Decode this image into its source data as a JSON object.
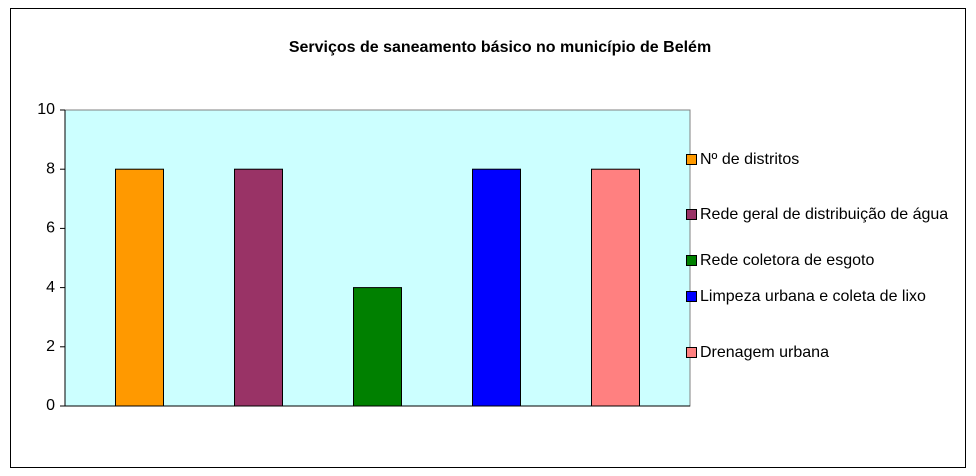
{
  "chart_data": {
    "type": "bar",
    "title": "Serviços de saneamento básico no município de Belém",
    "series": [
      {
        "name": "Nº de distritos",
        "color": "#ff9900",
        "values": [
          8
        ]
      },
      {
        "name": "Rede geral de distribuição de água",
        "color": "#993366",
        "values": [
          8
        ]
      },
      {
        "name": "Rede coletora de esgoto",
        "color": "#008000",
        "values": [
          4
        ]
      },
      {
        "name": "Limpeza urbana e coleta de lixo",
        "color": "#0000ff",
        "values": [
          8
        ]
      },
      {
        "name": "Drenagem urbana",
        "color": "#ff8080",
        "values": [
          8
        ]
      }
    ],
    "ylim": [
      0,
      10
    ],
    "yticks": [
      0,
      2,
      4,
      6,
      8,
      10
    ],
    "grid": false,
    "legend": "right"
  }
}
